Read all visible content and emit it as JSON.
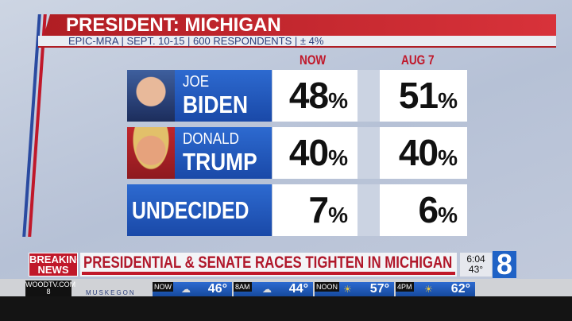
{
  "header": {
    "title": "PRESIDENT: MICHIGAN",
    "subtitle": "EPIC-MRA | SEPT. 10-15 | 600 RESPONDENTS | ± 4%"
  },
  "columns": [
    "NOW",
    "AUG 7"
  ],
  "rows": [
    {
      "first": "JOE",
      "last": "BIDEN",
      "now": "48",
      "aug": "51",
      "unit": "%",
      "party_color": "#2d6ad0"
    },
    {
      "first": "DONALD",
      "last": "TRUMP",
      "now": "40",
      "aug": "40",
      "unit": "%",
      "party_color": "#c0262c"
    },
    {
      "label": "UNDECIDED",
      "now": "7",
      "aug": "6",
      "unit": "%"
    }
  ],
  "ticker": {
    "breaking": "BREAKING NEWS",
    "headline": "PRESIDENTIAL & SENATE RACES TIGHTEN IN MICHIGAN",
    "time": "6:04",
    "temp": "43°",
    "station_logo": "8"
  },
  "weather": {
    "brand": "WOODTV.COM 8",
    "city": "MUSKEGON",
    "items": [
      {
        "label": "NOW",
        "icon": "partly-cloudy-icon",
        "temp": "46°"
      },
      {
        "label": "8AM",
        "icon": "partly-cloudy-icon",
        "temp": "44°"
      },
      {
        "label": "NOON",
        "icon": "sun-icon",
        "temp": "57°"
      },
      {
        "label": "4PM",
        "icon": "sun-icon",
        "temp": "62°"
      }
    ]
  }
}
